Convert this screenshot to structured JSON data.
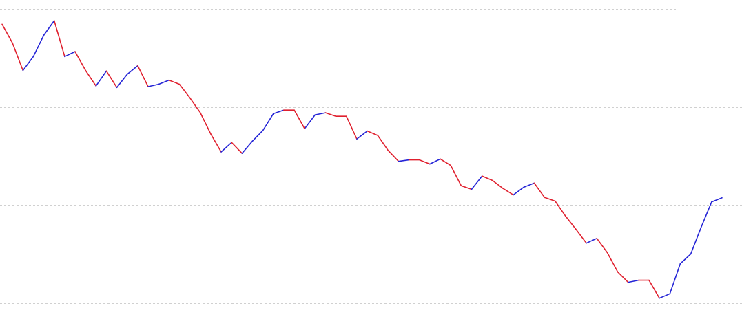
{
  "chart_data": {
    "type": "line",
    "title": "",
    "xlabel": "",
    "ylabel": "",
    "grid": true,
    "ylim": [
      0,
      100
    ],
    "colors": {
      "up": "#2424d6",
      "down": "#e0202e",
      "grid": "#d0d0d0",
      "axis": "#555555"
    },
    "series": [
      {
        "values": [
          94.8,
          88.4,
          79.1,
          83.8,
          91.1,
          96.0,
          83.8,
          85.5,
          79.1,
          73.8,
          78.9,
          73.3,
          77.8,
          80.7,
          73.6,
          74.4,
          75.8,
          74.4,
          69.8,
          64.7,
          57.5,
          51.4,
          54.6,
          50.9,
          55.1,
          58.7,
          64.4,
          65.6,
          65.6,
          59.3,
          64.0,
          64.7,
          63.5,
          63.5,
          55.8,
          58.5,
          57.0,
          51.9,
          48.2,
          48.7,
          48.7,
          47.3,
          49.0,
          46.8,
          39.9,
          38.7,
          43.2,
          41.7,
          39.0,
          36.8,
          39.4,
          40.8,
          35.9,
          34.7,
          29.6,
          25.1,
          20.4,
          22.0,
          17.2,
          10.6,
          7.1,
          7.8,
          7.8,
          1.7,
          3.2,
          13.4,
          16.7,
          25.8,
          34.4,
          35.8
        ]
      }
    ]
  }
}
